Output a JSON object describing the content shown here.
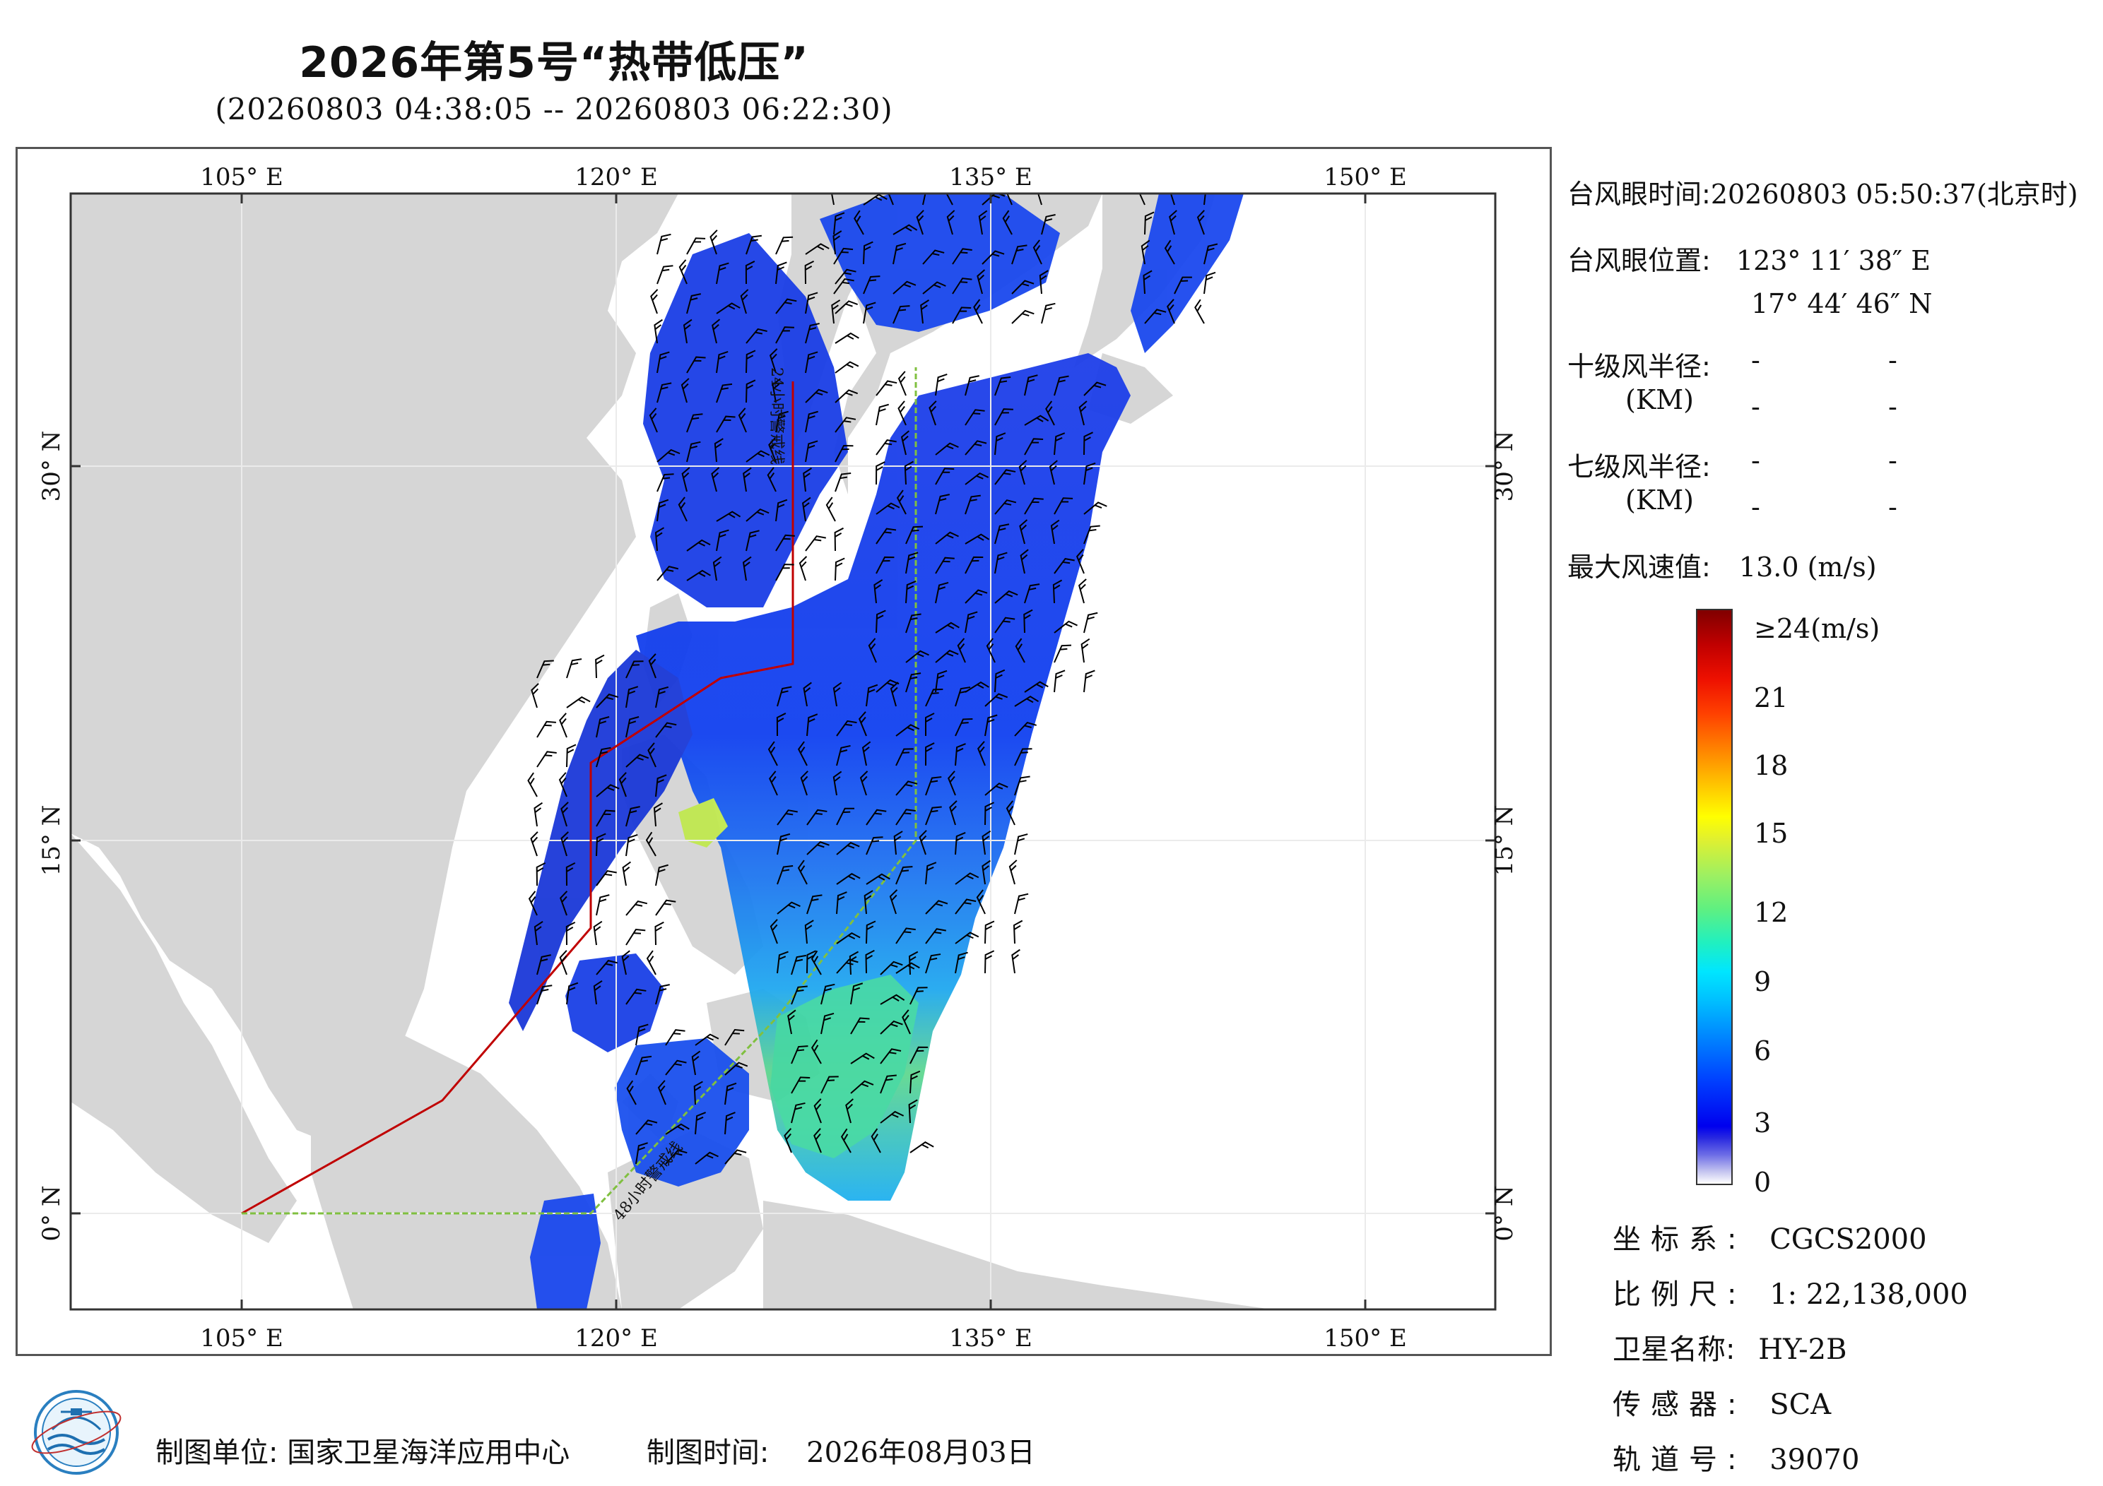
{
  "title": "2026年第5号“热带低压”",
  "subtitle": "(20260803 04:38:05 -- 20260803 06:22:30)",
  "map": {
    "top_lon_labels": [
      "105° E",
      "120° E",
      "135° E",
      "150° E"
    ],
    "bottom_lon_labels": [
      "105° E",
      "120° E",
      "135° E",
      "150° E"
    ],
    "left_lat_labels": [
      "30° N",
      "15° N",
      "0° N"
    ],
    "right_lat_labels": [
      "30° N",
      "15° N",
      "0° N"
    ],
    "line_label_24h": "24小时警戒线",
    "line_label_48h": "48小时警戒线",
    "colors": {
      "land": "#d6d6d6",
      "sea": "#ffffff",
      "warning24": "#c00000",
      "warning48": "#80c040",
      "barb": "#000000",
      "grid": "#e8e8e8"
    }
  },
  "info": {
    "eye_time_label": "台风眼时间:",
    "eye_time_value": "20260803 05:50:37(北京时)",
    "eye_pos_label": "台风眼位置:",
    "eye_lon": "123° 11′ 38″ E",
    "eye_lat": "17° 44′ 46″ N",
    "r10_label": "十级风半径:",
    "r7_label": "七级风半径:",
    "km_label": "(KM)",
    "dash": "-",
    "max_wind_label": "最大风速值:",
    "max_wind_value": "13.0  (m/s)"
  },
  "colorbar": {
    "top_label": "≥24(m/s)",
    "ticks": [
      "21",
      "18",
      "15",
      "12",
      "9",
      "6",
      "3",
      "0"
    ]
  },
  "meta": {
    "coord_label": "坐标系:",
    "coord_value": "CGCS2000",
    "scale_label": "比例尺:",
    "scale_value": "1: 22,138,000",
    "sat_label": "卫星名称:",
    "sat_value": "HY-2B",
    "sensor_label": "传感器:",
    "sensor_value": "SCA",
    "orbit_label": "轨道号:",
    "orbit_value": "39070"
  },
  "footer": {
    "org_label": "制图单位:",
    "org_value": "国家卫星海洋应用中心",
    "date_label": "制图时间:",
    "date_value": "2026年08月03日"
  }
}
